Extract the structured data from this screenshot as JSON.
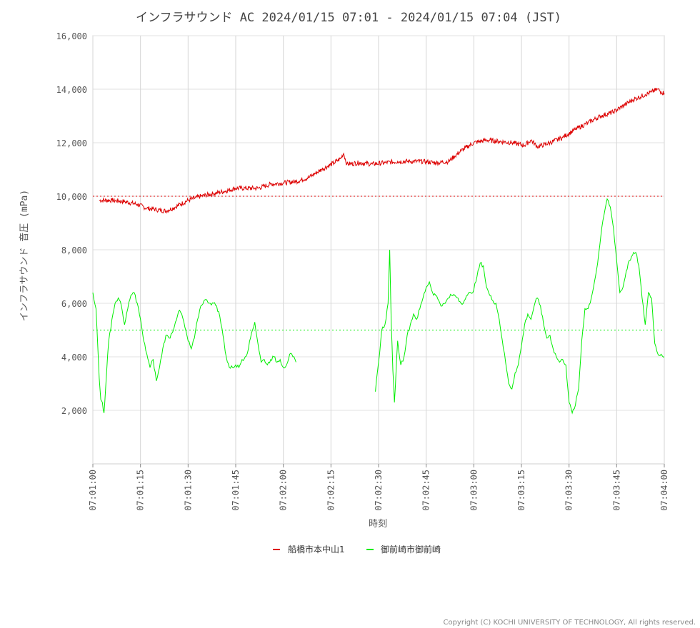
{
  "chart_data": {
    "type": "line",
    "title": "インフラサウンド AC 2024/01/15 07:01 - 2024/01/15 07:04 (JST)",
    "xlabel": "時刻",
    "ylabel": "インフラサウンド 音圧 (mPa)",
    "ylim": [
      0,
      16000
    ],
    "yticks": [
      2000,
      4000,
      6000,
      8000,
      10000,
      12000,
      14000,
      16000
    ],
    "ytick_labels": [
      "2,000",
      "4,000",
      "6,000",
      "8,000",
      "10,000",
      "12,000",
      "14,000",
      "16,000"
    ],
    "xlim_seconds": [
      0,
      180
    ],
    "xticks_seconds": [
      0,
      15,
      30,
      45,
      60,
      75,
      90,
      105,
      120,
      135,
      150,
      165,
      180
    ],
    "xtick_labels": [
      "07:01:00",
      "07:01:15",
      "07:01:30",
      "07:01:45",
      "07:02:00",
      "07:02:15",
      "07:02:30",
      "07:02:45",
      "07:03:00",
      "07:03:15",
      "07:03:30",
      "07:03:45",
      "07:04:00"
    ],
    "grid": true,
    "legend_position": "bottom-center",
    "series": [
      {
        "name": "船橋市本中山1",
        "color": "#dd0000",
        "reference_line": 10000,
        "x": [
          2,
          6,
          10,
          14,
          17,
          20,
          23,
          26,
          30,
          34,
          38,
          42,
          45,
          48,
          52,
          56,
          60,
          64,
          68,
          72,
          76,
          78,
          79,
          80,
          84,
          88,
          92,
          96,
          100,
          104,
          108,
          112,
          114,
          116,
          120,
          124,
          128,
          132,
          136,
          138,
          140,
          144,
          148,
          152,
          156,
          160,
          164,
          168,
          170,
          172,
          174,
          176,
          178,
          179,
          180
        ],
        "values": [
          9850,
          9850,
          9800,
          9700,
          9550,
          9500,
          9450,
          9600,
          9850,
          10000,
          10100,
          10200,
          10300,
          10300,
          10300,
          10450,
          10500,
          10550,
          10700,
          11000,
          11250,
          11400,
          11600,
          11200,
          11250,
          11200,
          11250,
          11300,
          11300,
          11300,
          11250,
          11300,
          11500,
          11700,
          12000,
          12100,
          12050,
          12000,
          11900,
          12100,
          11850,
          12000,
          12200,
          12500,
          12750,
          13000,
          13150,
          13450,
          13600,
          13700,
          13800,
          13900,
          14000,
          13900,
          13850
        ]
      },
      {
        "name": "御前崎市御前崎",
        "color": "#00ee00",
        "reference_line": 5000,
        "x": [
          0,
          1,
          2,
          2.5,
          3,
          3.5,
          4,
          5,
          6,
          7,
          8,
          9,
          10,
          11,
          12,
          13,
          14,
          15,
          16,
          17,
          18,
          19,
          20,
          21,
          22,
          23,
          24,
          25,
          26,
          27,
          28,
          29,
          30,
          31,
          32,
          33,
          34,
          35,
          36,
          37,
          38,
          39,
          40,
          41,
          42,
          43,
          44,
          45,
          46,
          47,
          48,
          49,
          50,
          51,
          52,
          53,
          54,
          55,
          56,
          57,
          58,
          59,
          60,
          61,
          62,
          63,
          64,
          65,
          66
        ],
        "values": [
          6400,
          5800,
          3200,
          2400,
          2300,
          1900,
          2800,
          4600,
          5400,
          6000,
          6200,
          5900,
          5200,
          5800,
          6300,
          6400,
          6000,
          5400,
          4600,
          4100,
          3600,
          3900,
          3100,
          3600,
          4300,
          4800,
          4700,
          4900,
          5300,
          5700,
          5600,
          5100,
          4600,
          4300,
          4700,
          5400,
          5900,
          6100,
          6100,
          6000,
          6000,
          5900,
          5500,
          4800,
          4000,
          3600,
          3600,
          3700,
          3600,
          3900,
          4000,
          4300,
          4900,
          5300,
          4500,
          3800,
          3900,
          3700,
          3900,
          4000,
          3800,
          3900,
          3600,
          3700,
          4100,
          4000,
          3800,
          null,
          null
        ]
      }
    ],
    "series2_part2": {
      "x": [
        89,
        90,
        91,
        92,
        93,
        93.5,
        94,
        94.5,
        95,
        96,
        97,
        98,
        99,
        100,
        101,
        102,
        103,
        104,
        105,
        106,
        107,
        108,
        109,
        110,
        111,
        112,
        113,
        114,
        115,
        116,
        117,
        118,
        119,
        120,
        121,
        122,
        123,
        124,
        125,
        126,
        127,
        128,
        129,
        130,
        131,
        132,
        133,
        134,
        135,
        136,
        137,
        138,
        139,
        140,
        141,
        142,
        143,
        144,
        145,
        146,
        147,
        148,
        149,
        150,
        151,
        152,
        153,
        154,
        155,
        156,
        157,
        158,
        159,
        160,
        161,
        162,
        163,
        164,
        165,
        166,
        167,
        168,
        169,
        170,
        171,
        172,
        173,
        174,
        175,
        176,
        177,
        178,
        179,
        180
      ],
      "values": [
        2700,
        3800,
        5000,
        5200,
        6000,
        8000,
        5200,
        3500,
        2300,
        4600,
        3700,
        4000,
        4800,
        5200,
        5600,
        5400,
        5800,
        6200,
        6600,
        6800,
        6400,
        6300,
        6100,
        5900,
        6000,
        6200,
        6300,
        6300,
        6200,
        6000,
        6100,
        6300,
        6400,
        6500,
        7000,
        7500,
        7400,
        6600,
        6300,
        6100,
        6000,
        5400,
        4600,
        3800,
        3000,
        2800,
        3400,
        3700,
        4400,
        5200,
        5600,
        5400,
        5900,
        6200,
        5900,
        5200,
        4700,
        4800,
        4300,
        4000,
        3800,
        3900,
        3700,
        2300,
        1900,
        2200,
        2800,
        4600,
        5800,
        5800,
        6200,
        6800,
        7500,
        8500,
        9300,
        9900,
        9600,
        8800,
        7600,
        6400,
        6600,
        7200,
        7600,
        7800,
        7900,
        7400,
        6200,
        5200,
        6400,
        6200,
        4500,
        4100,
        4100,
        4000
      ]
    }
  },
  "legend": [
    {
      "label": "船橋市本中山1",
      "color": "#dd0000"
    },
    {
      "label": "御前崎市御前崎",
      "color": "#00ee00"
    }
  ],
  "footer": {
    "copyright": "Copyright (C) KOCHI UNIVERSITY OF TECHNOLOGY, All rights reserved."
  }
}
